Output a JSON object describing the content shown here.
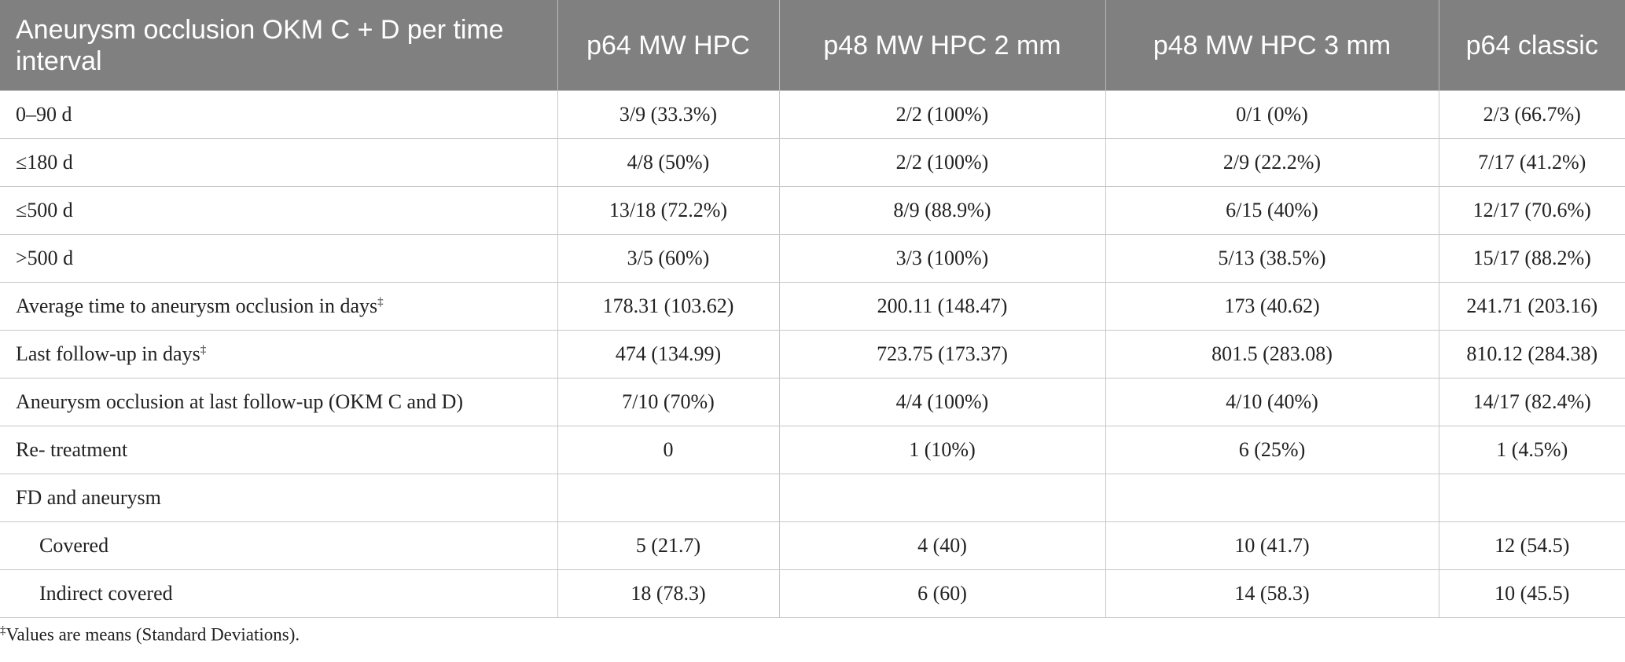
{
  "table": {
    "columns": [
      "Aneurysm occlusion OKM C + D per time interval",
      "p64 MW HPC",
      "p48 MW HPC 2 mm",
      "p48 MW HPC 3 mm",
      "p64 classic"
    ],
    "rows": [
      {
        "label": "0–90 d",
        "cells": [
          "3/9 (33.3%)",
          "2/2 (100%)",
          "0/1 (0%)",
          "2/3 (66.7%)"
        ]
      },
      {
        "label": "≤180 d",
        "cells": [
          "4/8 (50%)",
          "2/2 (100%)",
          "2/9 (22.2%)",
          "7/17 (41.2%)"
        ]
      },
      {
        "label": "≤500 d",
        "cells": [
          "13/18 (72.2%)",
          "8/9 (88.9%)",
          "6/15 (40%)",
          "12/17 (70.6%)"
        ]
      },
      {
        "label": ">500 d",
        "cells": [
          "3/5 (60%)",
          "3/3 (100%)",
          "5/13 (38.5%)",
          "15/17 (88.2%)"
        ]
      },
      {
        "label": "Average time to aneurysm occlusion in days",
        "mark": "‡",
        "cells": [
          "178.31 (103.62)",
          "200.11 (148.47)",
          "173 (40.62)",
          "241.71 (203.16)"
        ]
      },
      {
        "label": "Last follow-up in days",
        "mark": "‡",
        "cells": [
          "474 (134.99)",
          "723.75 (173.37)",
          "801.5 (283.08)",
          "810.12 (284.38)"
        ]
      },
      {
        "label": "Aneurysm occlusion at last follow-up (OKM C and D)",
        "cells": [
          "7/10 (70%)",
          "4/4 (100%)",
          "4/10 (40%)",
          "14/17 (82.4%)"
        ]
      },
      {
        "label": "Re- treatment",
        "cells": [
          "0",
          "1 (10%)",
          "6 (25%)",
          "1 (4.5%)"
        ]
      },
      {
        "label": "FD and aneurysm",
        "subrows": [
          {
            "label": "Covered",
            "cells": [
              "5 (21.7)",
              "4 (40)",
              "10 (41.7)",
              "12 (54.5)"
            ]
          },
          {
            "label": "Indirect covered",
            "cells": [
              "18 (78.3)",
              "6 (60)",
              "14 (58.3)",
              "10 (45.5)"
            ]
          }
        ]
      }
    ]
  },
  "footnote": {
    "mark": "‡",
    "text": "Values are means (Standard Deviations)."
  }
}
